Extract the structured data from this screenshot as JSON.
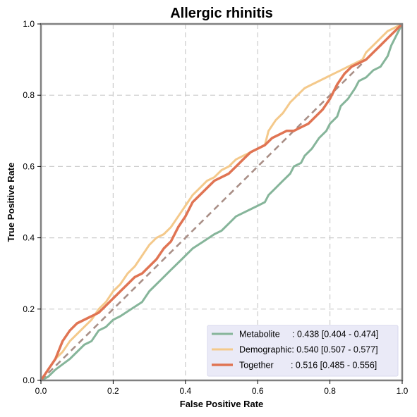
{
  "chart_data": {
    "type": "line",
    "title": "Allergic rhinitis",
    "xlabel": "False Positive Rate",
    "ylabel": "True Positive Rate",
    "xlim": [
      0,
      1
    ],
    "ylim": [
      0,
      1
    ],
    "xticks": [
      "0.0",
      "0.2",
      "0.4",
      "0.6",
      "0.8",
      "1.0"
    ],
    "yticks": [
      "0.0",
      "0.2",
      "0.4",
      "0.6",
      "0.8",
      "1.0"
    ],
    "grid": true,
    "legend_position": "lower-right",
    "reference_line": {
      "x": [
        0,
        1
      ],
      "y": [
        0,
        1
      ],
      "color": "#a98f87",
      "style": "dashed"
    },
    "series": [
      {
        "name": "Metabolite",
        "legend_label": "Metabolite     : 0.438 [0.404 - 0.474]",
        "color": "#86b59a",
        "points": [
          [
            0,
            0
          ],
          [
            0.02,
            0.01
          ],
          [
            0.04,
            0.03
          ],
          [
            0.06,
            0.045
          ],
          [
            0.08,
            0.06
          ],
          [
            0.1,
            0.08
          ],
          [
            0.12,
            0.1
          ],
          [
            0.14,
            0.11
          ],
          [
            0.16,
            0.14
          ],
          [
            0.18,
            0.15
          ],
          [
            0.2,
            0.17
          ],
          [
            0.22,
            0.18
          ],
          [
            0.25,
            0.2
          ],
          [
            0.28,
            0.22
          ],
          [
            0.3,
            0.25
          ],
          [
            0.33,
            0.28
          ],
          [
            0.36,
            0.31
          ],
          [
            0.39,
            0.34
          ],
          [
            0.42,
            0.37
          ],
          [
            0.45,
            0.39
          ],
          [
            0.48,
            0.41
          ],
          [
            0.5,
            0.42
          ],
          [
            0.52,
            0.44
          ],
          [
            0.54,
            0.46
          ],
          [
            0.56,
            0.47
          ],
          [
            0.58,
            0.48
          ],
          [
            0.6,
            0.49
          ],
          [
            0.62,
            0.5
          ],
          [
            0.63,
            0.52
          ],
          [
            0.65,
            0.54
          ],
          [
            0.67,
            0.56
          ],
          [
            0.69,
            0.58
          ],
          [
            0.7,
            0.6
          ],
          [
            0.72,
            0.61
          ],
          [
            0.73,
            0.63
          ],
          [
            0.75,
            0.65
          ],
          [
            0.77,
            0.68
          ],
          [
            0.79,
            0.7
          ],
          [
            0.8,
            0.72
          ],
          [
            0.82,
            0.74
          ],
          [
            0.83,
            0.77
          ],
          [
            0.85,
            0.79
          ],
          [
            0.87,
            0.82
          ],
          [
            0.88,
            0.84
          ],
          [
            0.9,
            0.85
          ],
          [
            0.92,
            0.87
          ],
          [
            0.94,
            0.88
          ],
          [
            0.96,
            0.91
          ],
          [
            0.97,
            0.94
          ],
          [
            0.98,
            0.96
          ],
          [
            0.99,
            0.98
          ],
          [
            1,
            1
          ]
        ]
      },
      {
        "name": "Demographic",
        "legend_label": "Demographic: 0.540 [0.507 - 0.577]",
        "color": "#f4c98b",
        "points": [
          [
            0,
            0
          ],
          [
            0.02,
            0.03
          ],
          [
            0.04,
            0.06
          ],
          [
            0.06,
            0.08
          ],
          [
            0.08,
            0.11
          ],
          [
            0.1,
            0.13
          ],
          [
            0.12,
            0.15
          ],
          [
            0.14,
            0.17
          ],
          [
            0.16,
            0.2
          ],
          [
            0.18,
            0.22
          ],
          [
            0.2,
            0.25
          ],
          [
            0.22,
            0.27
          ],
          [
            0.24,
            0.3
          ],
          [
            0.26,
            0.32
          ],
          [
            0.28,
            0.35
          ],
          [
            0.3,
            0.38
          ],
          [
            0.32,
            0.4
          ],
          [
            0.34,
            0.41
          ],
          [
            0.36,
            0.43
          ],
          [
            0.38,
            0.46
          ],
          [
            0.4,
            0.49
          ],
          [
            0.42,
            0.52
          ],
          [
            0.44,
            0.54
          ],
          [
            0.46,
            0.56
          ],
          [
            0.48,
            0.57
          ],
          [
            0.5,
            0.59
          ],
          [
            0.52,
            0.6
          ],
          [
            0.54,
            0.62
          ],
          [
            0.56,
            0.63
          ],
          [
            0.58,
            0.64
          ],
          [
            0.6,
            0.65
          ],
          [
            0.62,
            0.66
          ],
          [
            0.63,
            0.7
          ],
          [
            0.65,
            0.73
          ],
          [
            0.67,
            0.75
          ],
          [
            0.69,
            0.78
          ],
          [
            0.71,
            0.8
          ],
          [
            0.73,
            0.82
          ],
          [
            0.75,
            0.83
          ],
          [
            0.77,
            0.84
          ],
          [
            0.79,
            0.85
          ],
          [
            0.81,
            0.86
          ],
          [
            0.83,
            0.87
          ],
          [
            0.85,
            0.88
          ],
          [
            0.87,
            0.89
          ],
          [
            0.89,
            0.9
          ],
          [
            0.9,
            0.92
          ],
          [
            0.92,
            0.94
          ],
          [
            0.94,
            0.96
          ],
          [
            0.96,
            0.98
          ],
          [
            0.98,
            0.99
          ],
          [
            1,
            1
          ]
        ]
      },
      {
        "name": "Together",
        "legend_label": "Together       : 0.516 [0.485 - 0.556]",
        "color": "#e07453",
        "points": [
          [
            0,
            0
          ],
          [
            0.02,
            0.03
          ],
          [
            0.04,
            0.06
          ],
          [
            0.06,
            0.11
          ],
          [
            0.08,
            0.14
          ],
          [
            0.1,
            0.16
          ],
          [
            0.12,
            0.17
          ],
          [
            0.14,
            0.18
          ],
          [
            0.16,
            0.19
          ],
          [
            0.18,
            0.21
          ],
          [
            0.2,
            0.23
          ],
          [
            0.22,
            0.25
          ],
          [
            0.24,
            0.27
          ],
          [
            0.26,
            0.29
          ],
          [
            0.28,
            0.3
          ],
          [
            0.3,
            0.32
          ],
          [
            0.32,
            0.34
          ],
          [
            0.34,
            0.37
          ],
          [
            0.36,
            0.39
          ],
          [
            0.38,
            0.43
          ],
          [
            0.4,
            0.46
          ],
          [
            0.42,
            0.5
          ],
          [
            0.44,
            0.52
          ],
          [
            0.46,
            0.54
          ],
          [
            0.48,
            0.56
          ],
          [
            0.5,
            0.57
          ],
          [
            0.52,
            0.58
          ],
          [
            0.54,
            0.6
          ],
          [
            0.56,
            0.62
          ],
          [
            0.58,
            0.64
          ],
          [
            0.6,
            0.65
          ],
          [
            0.62,
            0.66
          ],
          [
            0.64,
            0.68
          ],
          [
            0.66,
            0.69
          ],
          [
            0.68,
            0.7
          ],
          [
            0.7,
            0.7
          ],
          [
            0.72,
            0.71
          ],
          [
            0.74,
            0.72
          ],
          [
            0.76,
            0.74
          ],
          [
            0.78,
            0.76
          ],
          [
            0.8,
            0.79
          ],
          [
            0.82,
            0.83
          ],
          [
            0.84,
            0.86
          ],
          [
            0.86,
            0.88
          ],
          [
            0.88,
            0.89
          ],
          [
            0.9,
            0.9
          ],
          [
            0.92,
            0.92
          ],
          [
            0.94,
            0.94
          ],
          [
            0.96,
            0.96
          ],
          [
            0.98,
            0.98
          ],
          [
            1,
            1
          ]
        ]
      }
    ]
  }
}
